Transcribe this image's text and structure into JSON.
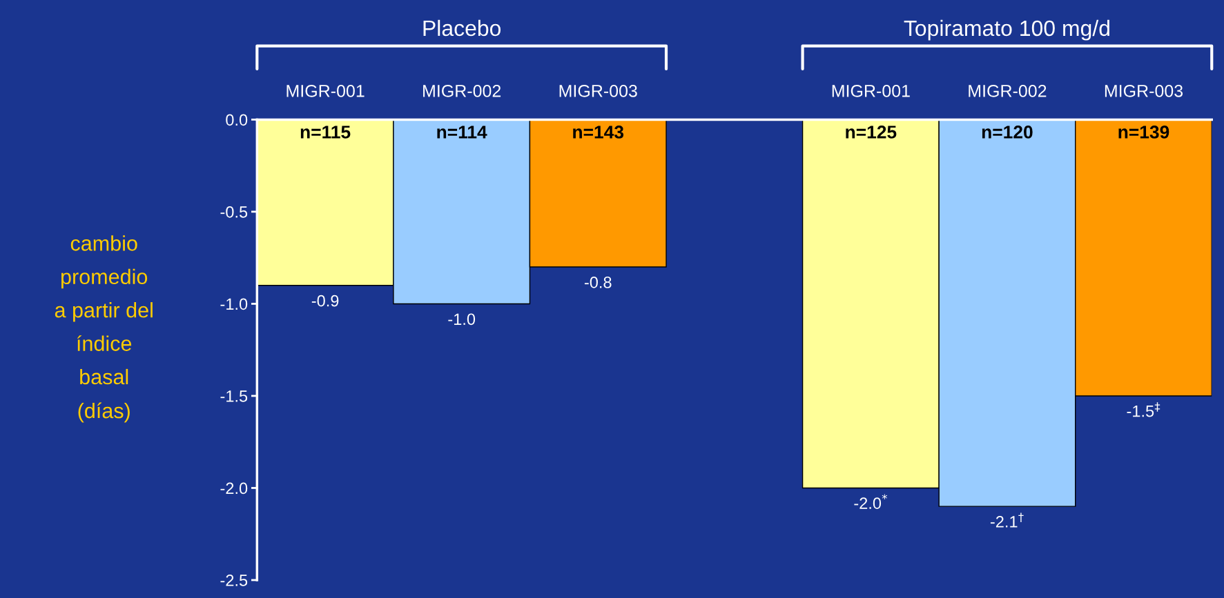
{
  "chart_data": {
    "type": "bar",
    "categories": [
      "MIGR-001",
      "MIGR-002",
      "MIGR-003",
      null,
      "MIGR-001",
      "MIGR-002",
      "MIGR-003"
    ],
    "series": [
      {
        "colors": [
          "#ffff99",
          "#99ccff",
          "#ff9900",
          null,
          "#ffff99",
          "#99ccff",
          "#ff9900"
        ],
        "values": [
          -0.9,
          -1.0,
          -0.8,
          null,
          -2.0,
          -2.1,
          -1.5
        ],
        "value_labels": [
          "-0.9",
          "-1.0",
          "-0.8",
          null,
          "-2.0$^{*}$",
          "-2.1$^{†}$",
          "-1.5$^{‡}$"
        ]
      }
    ],
    "ylabel": "cambio\npromedio\na partir del\níndice\nbasal\n(días)",
    "annotations": [
      "Placebo",
      "Topiramato 100 mg/d",
      "n=115",
      "n=114",
      "n=143",
      "n=125",
      "n=120",
      "n=139"
    ],
    "ylim": [
      -2.5,
      0
    ],
    "yticks": [
      {
        "value": 0,
        "label": "0.0"
      },
      -0.5,
      {
        "value": -1,
        "label": "-1.0"
      },
      -1.5,
      {
        "value": -2,
        "label": "-2.0"
      },
      -2.5
    ],
    "grid": false,
    "legend": false
  }
}
